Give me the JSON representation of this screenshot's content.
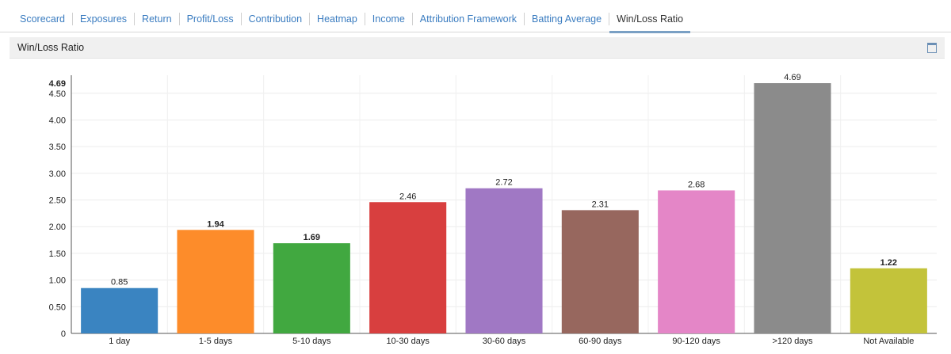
{
  "tabs": [
    {
      "label": "Scorecard",
      "active": false
    },
    {
      "label": "Exposures",
      "active": false
    },
    {
      "label": "Return",
      "active": false
    },
    {
      "label": "Profit/Loss",
      "active": false
    },
    {
      "label": "Contribution",
      "active": false
    },
    {
      "label": "Heatmap",
      "active": false
    },
    {
      "label": "Income",
      "active": false
    },
    {
      "label": "Attribution Framework",
      "active": false
    },
    {
      "label": "Batting Average",
      "active": false
    },
    {
      "label": "Win/Loss Ratio",
      "active": true
    }
  ],
  "panel": {
    "title": "Win/Loss Ratio",
    "maximize_icon": "maximize-icon"
  },
  "chart_data": {
    "type": "bar",
    "title": "",
    "xlabel": "",
    "ylabel": "",
    "categories": [
      "1 day",
      "1-5 days",
      "5-10 days",
      "10-30 days",
      "30-60 days",
      "60-90 days",
      "90-120 days",
      ">120 days",
      "Not Available"
    ],
    "values": [
      0.85,
      1.94,
      1.69,
      2.46,
      2.72,
      2.31,
      2.68,
      4.69,
      1.22
    ],
    "data_labels": [
      "0.85",
      "1.94",
      "1.69",
      "2.46",
      "2.72",
      "2.31",
      "2.68",
      "4.69",
      "1.22"
    ],
    "colors": [
      "#3a84c1",
      "#fd8c2a",
      "#41a840",
      "#d83f3f",
      "#a078c4",
      "#97675e",
      "#e486c7",
      "#8b8b8b",
      "#c3c33a"
    ],
    "yticks": [
      "0",
      "0.50",
      "1.00",
      "1.50",
      "2.00",
      "2.50",
      "3.00",
      "3.50",
      "4.00",
      "4.50"
    ],
    "max_label": "4.69",
    "ylim": [
      0,
      4.69
    ],
    "grid": true,
    "legend": "none"
  }
}
